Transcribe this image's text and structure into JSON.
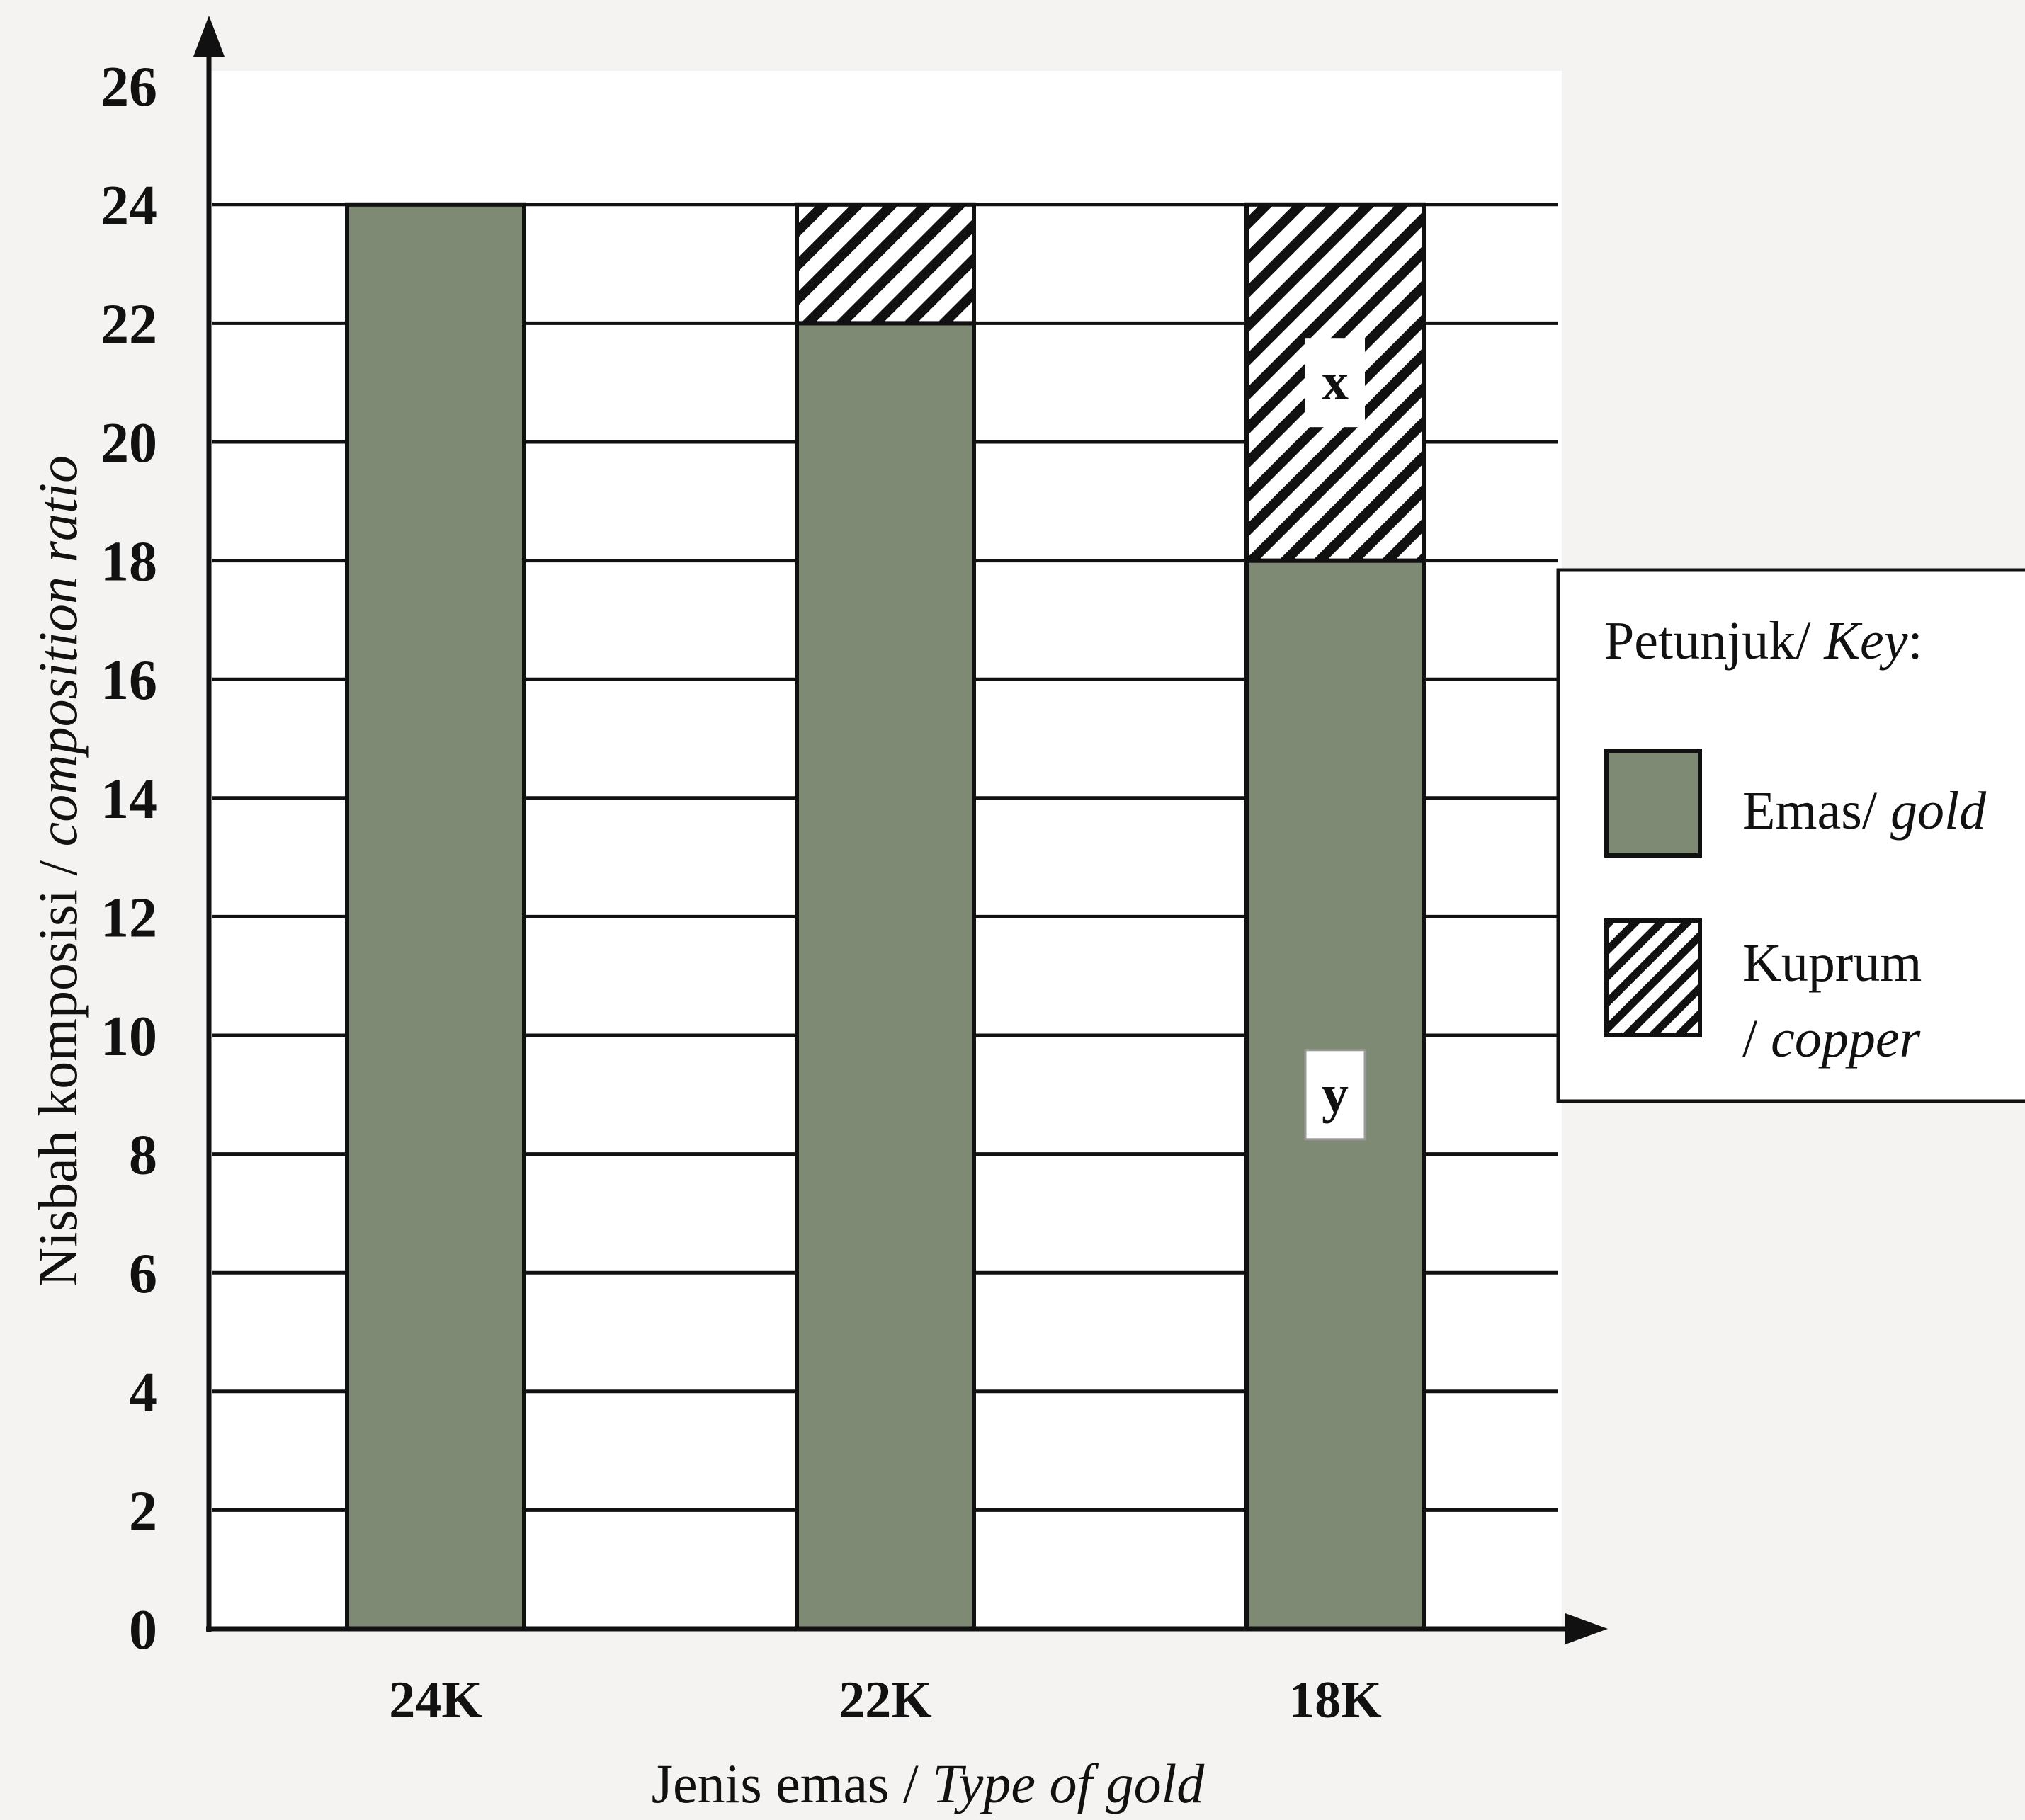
{
  "chart_data": {
    "type": "bar",
    "stacked": true,
    "categories": [
      "24K",
      "22K",
      "18K"
    ],
    "series": [
      {
        "name": "Emas/ gold",
        "values": [
          24,
          22,
          18
        ],
        "color": "#7f8a75",
        "pattern": "solid"
      },
      {
        "name": "Kuprum / copper",
        "values": [
          0,
          2,
          6
        ],
        "color": "#ffffff",
        "pattern": "diagonal-hatch"
      }
    ],
    "xlabel": {
      "plain": "Jenis emas / ",
      "italic": "Type of gold"
    },
    "ylabel": {
      "plain": "Nisbah komposisi / ",
      "italic": "composition ratio"
    },
    "ylim": [
      0,
      26
    ],
    "yticks": [
      "0",
      "2",
      "4",
      "6",
      "8",
      "10",
      "12",
      "14",
      "16",
      "18",
      "20",
      "22",
      "24",
      "26"
    ],
    "grid": true,
    "legend": {
      "placement": "right",
      "title_plain": "Petunjuk/ ",
      "title_italic": "Key",
      "title_suffix": ":",
      "gold_plain": "Emas/ ",
      "gold_italic": "gold",
      "copper_line1": "Kuprum",
      "copper_line2_plain": "/ ",
      "copper_line2_italic": "copper"
    },
    "annotations": [
      {
        "text": "x",
        "category": "18K",
        "series": "Kuprum / copper"
      },
      {
        "text": "y",
        "category": "18K",
        "series": "Emas/ gold"
      }
    ]
  }
}
